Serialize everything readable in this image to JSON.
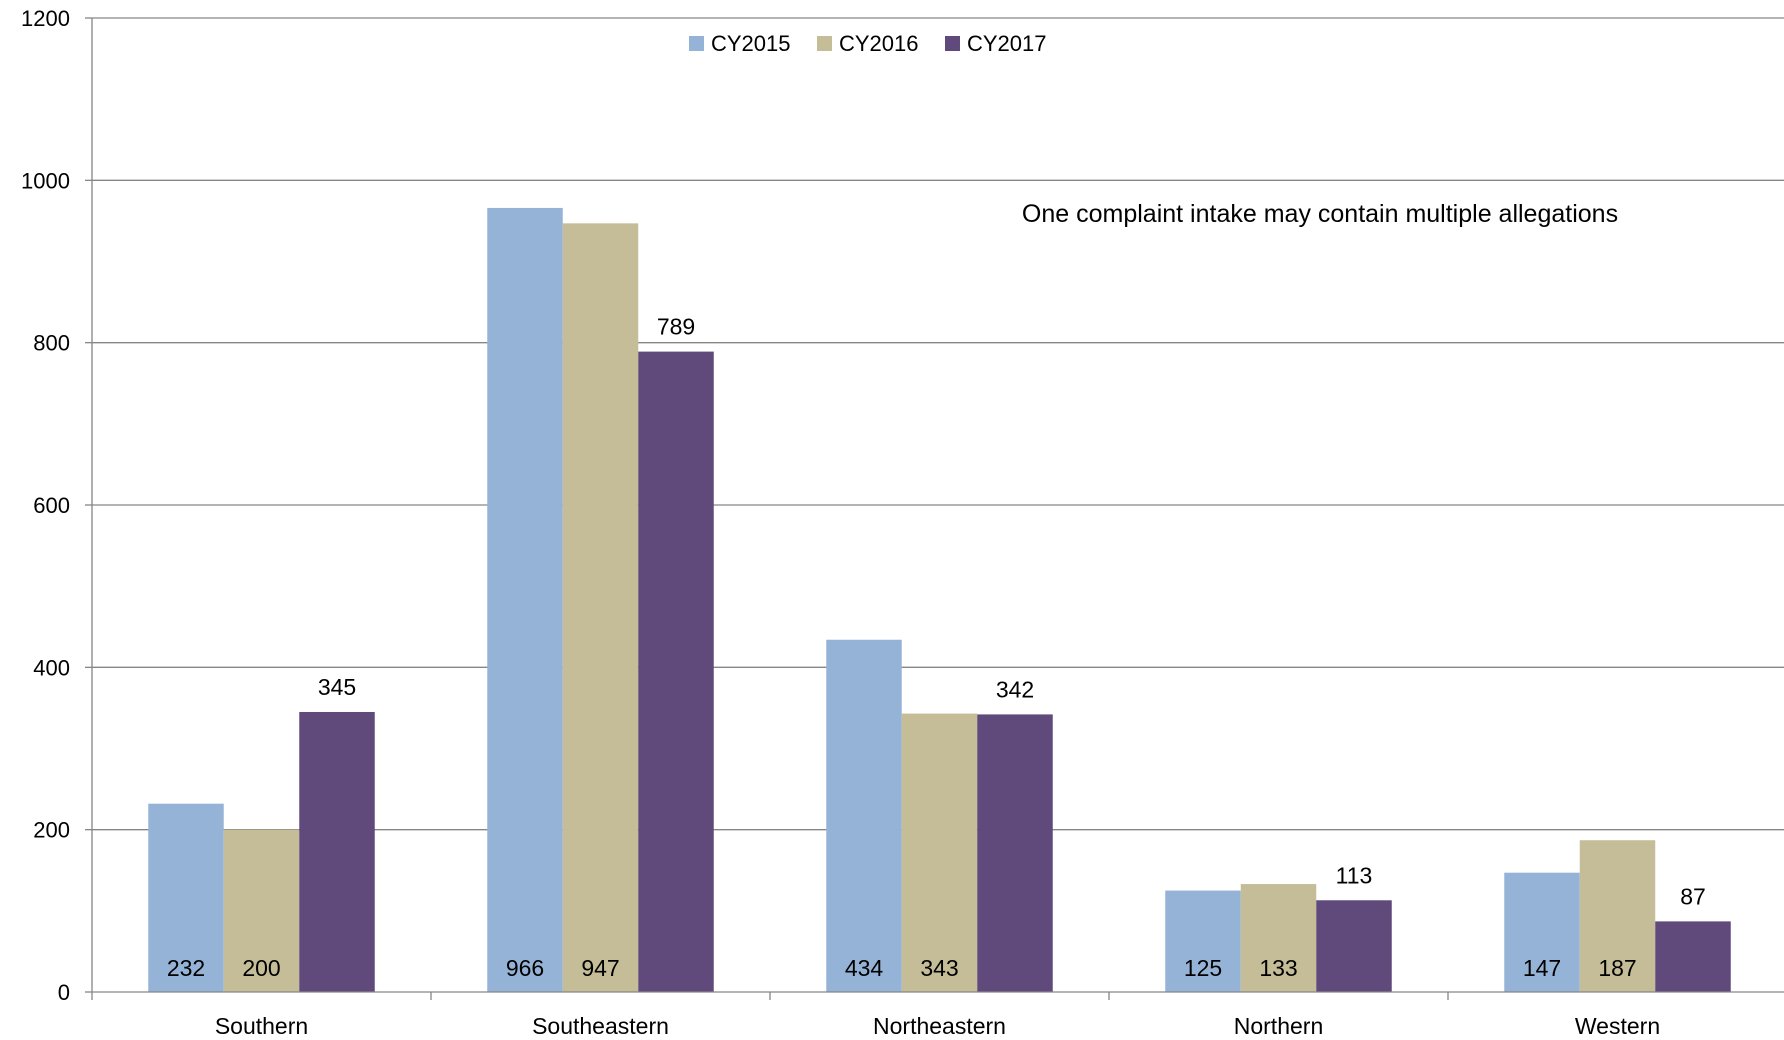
{
  "chart_data": {
    "type": "bar",
    "categories": [
      "Southern",
      "Southeastern",
      "Northeastern",
      "Northern",
      "Western"
    ],
    "series": [
      {
        "name": "CY2015",
        "values": [
          232,
          966,
          434,
          125,
          147
        ],
        "color": "#95b3d7"
      },
      {
        "name": "CY2016",
        "values": [
          200,
          947,
          343,
          133,
          187
        ],
        "color": "#c4bd97"
      },
      {
        "name": "CY2017",
        "values": [
          345,
          789,
          342,
          113,
          87
        ],
        "color": "#604a7b"
      }
    ],
    "data_labels": [
      [
        "232",
        "966",
        "434",
        "125",
        "147"
      ],
      [
        "200",
        "947",
        "343",
        "133",
        "187"
      ],
      [
        "345",
        "789",
        "342",
        "113",
        "87"
      ]
    ],
    "ylim": [
      0,
      1200
    ],
    "yticks": [
      0,
      200,
      400,
      600,
      800,
      1000,
      1200
    ],
    "title": "",
    "xlabel": "",
    "ylabel": "",
    "annotation": "One complaint intake may contain multiple allegations",
    "legend_position": "top-center",
    "grid": true
  }
}
